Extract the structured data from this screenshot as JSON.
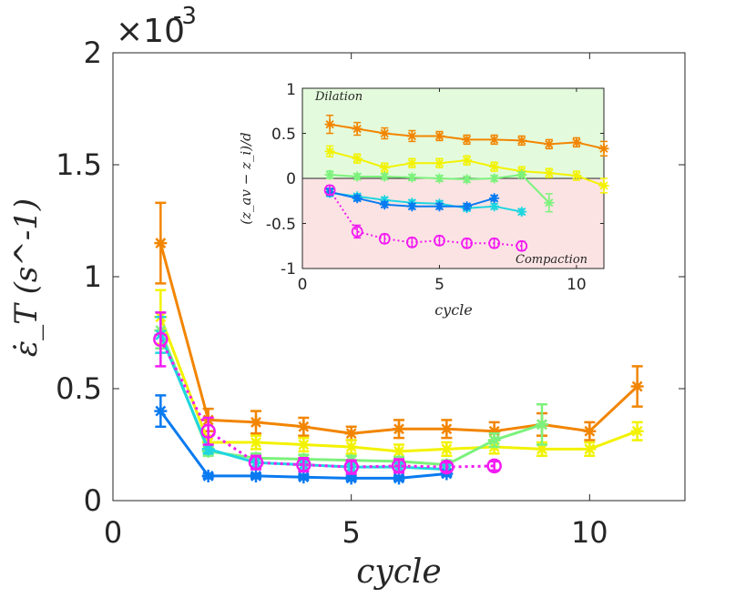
{
  "chart_data": [
    {
      "type": "line",
      "ylabel": "ε̇_T (s^-1)",
      "xlabel": "cycle",
      "multiplier": "×10",
      "multiplier_exp": "-3",
      "xlim": [
        0,
        12
      ],
      "ylim": [
        0,
        2
      ],
      "xticks": [
        0,
        5,
        10
      ],
      "yticks": [
        0,
        0.5,
        1,
        1.5,
        2
      ],
      "xtick_labels": [
        "0",
        "5",
        "10"
      ],
      "ytick_labels": [
        "0",
        "0.5",
        "1",
        "1.5",
        "2"
      ],
      "series": [
        {
          "name": "orange",
          "color": "#F28500",
          "marker": "asterisk",
          "style": "solid",
          "x": [
            1,
            2,
            3,
            4,
            5,
            6,
            7,
            8,
            9,
            10,
            11
          ],
          "y": [
            1.15,
            0.36,
            0.35,
            0.33,
            0.3,
            0.32,
            0.32,
            0.31,
            0.34,
            0.31,
            0.51
          ],
          "err": [
            0.18,
            0.05,
            0.05,
            0.04,
            0.03,
            0.04,
            0.04,
            0.04,
            0.05,
            0.04,
            0.09
          ]
        },
        {
          "name": "yellow",
          "color": "#F2F200",
          "marker": "asterisk",
          "style": "solid",
          "x": [
            1,
            2,
            3,
            4,
            5,
            6,
            7,
            8,
            9,
            10,
            11
          ],
          "y": [
            0.82,
            0.26,
            0.26,
            0.25,
            0.24,
            0.22,
            0.23,
            0.24,
            0.23,
            0.23,
            0.31
          ],
          "err": [
            0.12,
            0.03,
            0.03,
            0.03,
            0.03,
            0.03,
            0.03,
            0.03,
            0.03,
            0.03,
            0.04
          ]
        },
        {
          "name": "lightgreen",
          "color": "#7CF27C",
          "marker": "asterisk",
          "style": "solid",
          "x": [
            1,
            2,
            3,
            4,
            5,
            6,
            7,
            8,
            9
          ],
          "y": [
            0.76,
            0.22,
            0.19,
            0.185,
            0.18,
            0.175,
            0.16,
            0.27,
            0.34
          ],
          "err": [
            0.08,
            0.02,
            0.02,
            0.02,
            0.02,
            0.02,
            0.02,
            0.03,
            0.09
          ]
        },
        {
          "name": "cyan",
          "color": "#1FD6E0",
          "marker": "asterisk",
          "style": "solid",
          "x": [
            1,
            2,
            3,
            4,
            5,
            6,
            7
          ],
          "y": [
            0.74,
            0.23,
            0.17,
            0.16,
            0.15,
            0.15,
            0.14
          ],
          "err": [
            0.08,
            0.02,
            0.02,
            0.02,
            0.02,
            0.02,
            0.02
          ]
        },
        {
          "name": "blue",
          "color": "#0A7AF0",
          "marker": "asterisk",
          "style": "solid",
          "x": [
            1,
            2,
            3,
            4,
            5,
            6,
            7
          ],
          "y": [
            0.4,
            0.11,
            0.11,
            0.105,
            0.1,
            0.1,
            0.12
          ],
          "err": [
            0.07,
            0.01,
            0.01,
            0.01,
            0.01,
            0.01,
            0.01
          ]
        },
        {
          "name": "magenta",
          "color": "#F21BF2",
          "marker": "circle",
          "style": "dotted",
          "x": [
            1,
            2,
            3,
            4,
            5,
            6,
            7,
            8
          ],
          "y": [
            0.72,
            0.31,
            0.17,
            0.16,
            0.15,
            0.155,
            0.15,
            0.155
          ],
          "err": [
            0.12,
            0.06,
            0.03,
            0.03,
            0.03,
            0.03,
            0.02,
            0.02
          ]
        }
      ]
    },
    {
      "type": "line",
      "ylabel": "(z_av − z_i)/d",
      "xlabel": "cycle",
      "xlim": [
        0,
        11
      ],
      "ylim": [
        -1,
        1
      ],
      "xticks": [
        0,
        5,
        10
      ],
      "yticks": [
        -1,
        -0.5,
        0,
        0.5,
        1
      ],
      "xtick_labels": [
        "0",
        "5",
        "10"
      ],
      "ytick_labels": [
        "-1",
        "-0.5",
        "0",
        "0.5",
        "1"
      ],
      "region_labels": {
        "top": "Dilation",
        "bottom": "Compaction"
      },
      "region_colors": {
        "top": "#E3FBDC",
        "bottom": "#FCE3E3"
      },
      "series": [
        {
          "name": "orange",
          "color": "#F28500",
          "marker": "asterisk",
          "style": "solid",
          "x": [
            1,
            2,
            3,
            4,
            5,
            6,
            7,
            8,
            9,
            10,
            11
          ],
          "y": [
            0.6,
            0.55,
            0.5,
            0.47,
            0.47,
            0.43,
            0.43,
            0.42,
            0.38,
            0.4,
            0.33
          ],
          "err": [
            0.1,
            0.07,
            0.06,
            0.06,
            0.05,
            0.05,
            0.05,
            0.05,
            0.05,
            0.05,
            0.08
          ]
        },
        {
          "name": "yellow",
          "color": "#F2F200",
          "marker": "asterisk",
          "style": "solid",
          "x": [
            1,
            2,
            3,
            4,
            5,
            6,
            7,
            8,
            9,
            10,
            11
          ],
          "y": [
            0.3,
            0.22,
            0.12,
            0.17,
            0.17,
            0.2,
            0.13,
            0.08,
            0.06,
            0.03,
            -0.08
          ],
          "err": [
            0.06,
            0.05,
            0.05,
            0.05,
            0.05,
            0.05,
            0.05,
            0.05,
            0.05,
            0.05,
            0.08
          ]
        },
        {
          "name": "lightgreen",
          "color": "#7CF27C",
          "marker": "asterisk",
          "style": "solid",
          "x": [
            1,
            2,
            3,
            4,
            5,
            6,
            7,
            8,
            9
          ],
          "y": [
            0.04,
            0.02,
            0.02,
            0.01,
            0.0,
            -0.01,
            0.0,
            0.04,
            -0.27
          ],
          "err": [
            0.04,
            0.03,
            0.03,
            0.03,
            0.03,
            0.03,
            0.03,
            0.03,
            0.1
          ]
        },
        {
          "name": "cyan",
          "color": "#1FD6E0",
          "marker": "asterisk",
          "style": "solid",
          "x": [
            1,
            2,
            3,
            4,
            5,
            6,
            7,
            8
          ],
          "y": [
            -0.16,
            -0.2,
            -0.24,
            -0.27,
            -0.28,
            -0.33,
            -0.31,
            -0.37
          ],
          "err": [
            0.04,
            0.03,
            0.03,
            0.03,
            0.03,
            0.03,
            0.03,
            0.03
          ]
        },
        {
          "name": "blue",
          "color": "#0A7AF0",
          "marker": "asterisk",
          "style": "solid",
          "x": [
            1,
            2,
            3,
            4,
            5,
            6,
            7
          ],
          "y": [
            -0.15,
            -0.22,
            -0.29,
            -0.31,
            -0.31,
            -0.31,
            -0.22
          ],
          "err": [
            0.04,
            0.03,
            0.03,
            0.03,
            0.03,
            0.03,
            0.03
          ]
        },
        {
          "name": "magenta",
          "color": "#F21BF2",
          "marker": "circle",
          "style": "dotted",
          "x": [
            1,
            2,
            3,
            4,
            5,
            6,
            7,
            8
          ],
          "y": [
            -0.13,
            -0.59,
            -0.67,
            -0.71,
            -0.69,
            -0.72,
            -0.72,
            -0.75
          ],
          "err": [
            0.05,
            0.07,
            0.05,
            0.05,
            0.05,
            0.05,
            0.05,
            0.05
          ]
        }
      ]
    }
  ]
}
